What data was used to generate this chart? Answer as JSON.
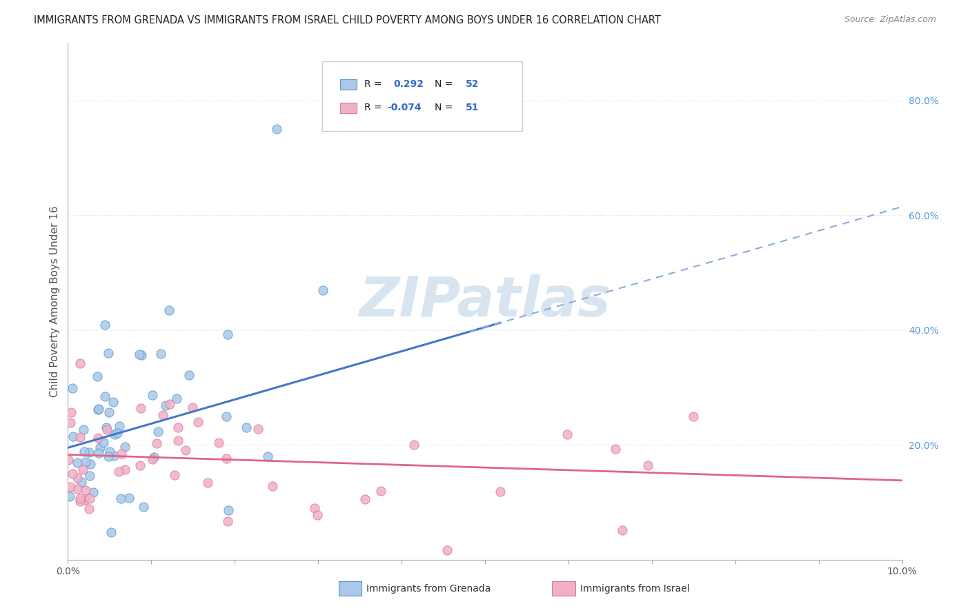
{
  "title": "IMMIGRANTS FROM GRENADA VS IMMIGRANTS FROM ISRAEL CHILD POVERTY AMONG BOYS UNDER 16 CORRELATION CHART",
  "source": "Source: ZipAtlas.com",
  "ylabel": "Child Poverty Among Boys Under 16",
  "grenada_R": 0.292,
  "grenada_N": 52,
  "israel_R": -0.074,
  "israel_N": 51,
  "xlim": [
    0.0,
    0.1
  ],
  "ylim": [
    0.0,
    0.9
  ],
  "yticks_right": [
    0.2,
    0.4,
    0.6,
    0.8
  ],
  "ytick_labels_right": [
    "20.0%",
    "40.0%",
    "60.0%",
    "80.0%"
  ],
  "background_color": "#ffffff",
  "grenada_scatter_fill": "#aac8e8",
  "grenada_scatter_edge": "#5599cc",
  "israel_scatter_fill": "#f0b0c8",
  "israel_scatter_edge": "#dd7799",
  "grenada_line_color": "#4477cc",
  "grenada_dash_color": "#88aadd",
  "israel_line_color": "#dd6688",
  "grid_color": "#dddddd",
  "title_color": "#222222",
  "source_color": "#888888",
  "ylabel_color": "#555555",
  "right_tick_color": "#5599dd",
  "watermark_color": "#d8e4f0",
  "legend_text_color": "#222222",
  "legend_val_color": "#3366cc",
  "bottom_text_color": "#333333"
}
